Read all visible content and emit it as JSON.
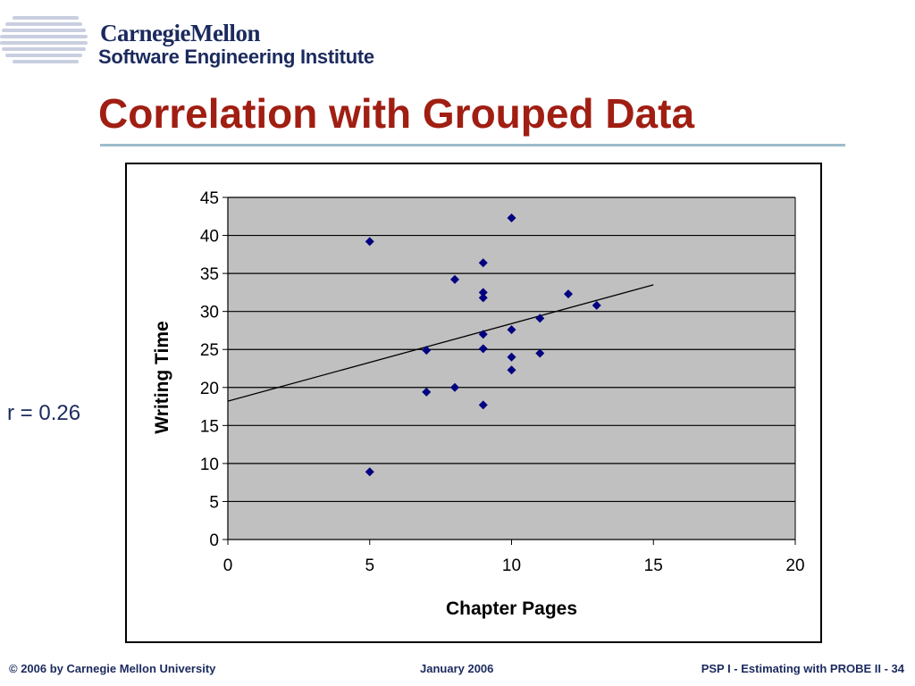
{
  "header": {
    "logo_line1": "CarnegieMellon",
    "logo_line2": "Software Engineering Institute",
    "title": "Correlation with Grouped Data"
  },
  "annotation": {
    "r_label": "r = 0.26"
  },
  "footer": {
    "left": "© 2006 by Carnegie Mellon University",
    "center": "January 2006",
    "right": "PSP I - Estimating with PROBE II - 34"
  },
  "colors": {
    "title": "#a01e12",
    "brand": "#1b2a5e",
    "rule": "#9dbcca",
    "plot_bg": "#c0c0c0",
    "marker": "#000080"
  },
  "chart_data": {
    "type": "scatter",
    "title": "",
    "xlabel": "Chapter Pages",
    "ylabel": "Writing Time",
    "xlim": [
      0,
      20
    ],
    "ylim": [
      0,
      45
    ],
    "xticks": [
      0,
      5,
      10,
      15,
      20
    ],
    "yticks": [
      0,
      5,
      10,
      15,
      20,
      25,
      30,
      35,
      40,
      45
    ],
    "grid": "horizontal",
    "legend": "none",
    "points": [
      {
        "x": 5,
        "y": 39.2
      },
      {
        "x": 5,
        "y": 8.9
      },
      {
        "x": 7,
        "y": 24.9
      },
      {
        "x": 7,
        "y": 19.4
      },
      {
        "x": 8,
        "y": 34.2
      },
      {
        "x": 8,
        "y": 20
      },
      {
        "x": 9,
        "y": 36.4
      },
      {
        "x": 9,
        "y": 32.5
      },
      {
        "x": 9,
        "y": 31.8
      },
      {
        "x": 9,
        "y": 27
      },
      {
        "x": 9,
        "y": 25.1
      },
      {
        "x": 9,
        "y": 17.7
      },
      {
        "x": 10,
        "y": 42.3
      },
      {
        "x": 10,
        "y": 27.6
      },
      {
        "x": 10,
        "y": 24
      },
      {
        "x": 10,
        "y": 22.3
      },
      {
        "x": 11,
        "y": 29.1
      },
      {
        "x": 11,
        "y": 24.5
      },
      {
        "x": 12,
        "y": 32.3
      },
      {
        "x": 13,
        "y": 30.8
      }
    ],
    "trendline": {
      "x": [
        0,
        15
      ],
      "y": [
        18.2,
        33.5
      ]
    }
  }
}
